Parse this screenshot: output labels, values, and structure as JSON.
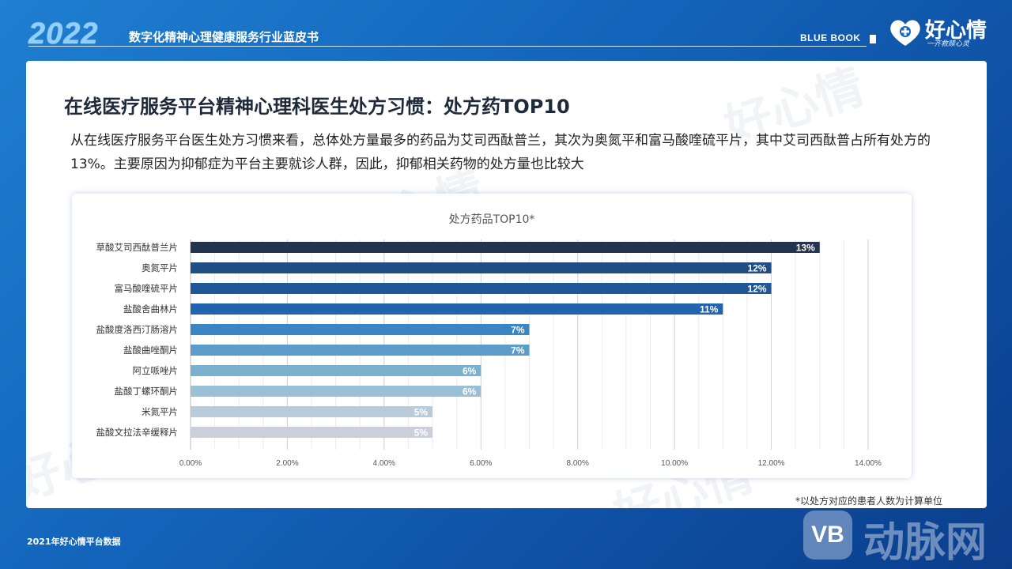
{
  "header": {
    "year": "2022",
    "subtitle": "数字化精神心理健康服务行业蓝皮书",
    "bluebook": "BLUE BOOK",
    "logo_text": "好心情",
    "logo_slogan": "一齐救赎心灵"
  },
  "watermark": "好心情",
  "main": {
    "title": "在线医疗服务平台精神心理科医生处方习惯：处方药TOP10",
    "description": "从在线医疗服务平台医生处方习惯来看，总体处方量最多的药品为艾司西酞普兰，其次为奥氮平和富马酸喹硫平片，其中艾司西酞普占所有处方的13%。主要原因为抑郁症为平台主要就诊人群，因此，抑郁相关药物的处方量也比较大",
    "footnote": "*以处方对应的患者人数为计算单位"
  },
  "bottom_note": "2021年好心情平台数据",
  "brand_watermark": {
    "mark": "VB",
    "text": "动脉网"
  },
  "chart_data": {
    "type": "bar",
    "orientation": "horizontal",
    "title": "处方药品TOP10*",
    "categories": [
      "草酸艾司西酞普兰片",
      "奥氮平片",
      "富马酸喹硫平片",
      "盐酸舍曲林片",
      "盐酸度洛西汀肠溶片",
      "盐酸曲唑酮片",
      "阿立哌唑片",
      "盐酸丁螺环酮片",
      "米氮平片",
      "盐酸文拉法辛缓释片"
    ],
    "values": [
      13,
      12,
      12,
      11,
      7,
      7,
      6,
      6,
      5,
      5
    ],
    "data_labels": [
      "13%",
      "12%",
      "12%",
      "11%",
      "7%",
      "7%",
      "6%",
      "6%",
      "5%",
      "5%"
    ],
    "colors": [
      "#24344f",
      "#1f4e86",
      "#1f5797",
      "#2064ad",
      "#3a85c4",
      "#5b9ccb",
      "#7cb0cf",
      "#9bbfd5",
      "#b9cad8",
      "#cbcfdc"
    ],
    "xlim": [
      0,
      14
    ],
    "xticks": [
      "0.00%",
      "2.00%",
      "4.00%",
      "6.00%",
      "8.00%",
      "10.00%",
      "12.00%",
      "14.00%"
    ],
    "grid": true
  }
}
